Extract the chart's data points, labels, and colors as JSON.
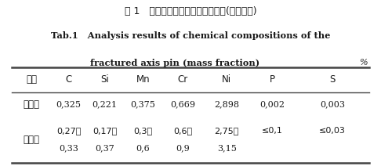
{
  "title_cn": "表 1   断裂轴销的化学成分分析结果(质量分数)",
  "title_en_line1": "Tab.1   Analysis results of chemical compositions of the",
  "title_en_line2": "fractured axis pin (mass fraction)",
  "percent_sign": "%",
  "col_headers": [
    "项目",
    "C",
    "Si",
    "Mn",
    "Cr",
    "Ni",
    "P",
    "S"
  ],
  "row1_label": "实测值",
  "row1_values": [
    "0,325",
    "0,221",
    "0,375",
    "0,669",
    "2,898",
    "0,002",
    "0,003"
  ],
  "row2_label": "标准值",
  "row2_values_top": [
    "0,27～",
    "0,17～",
    "0,3～",
    "0,6～",
    "2,75～",
    "≤0,1",
    "≤0,03"
  ],
  "row2_values_bot": [
    "0,33",
    "0,37",
    "0,6",
    "0,9",
    "3,15",
    "",
    ""
  ],
  "bg_color": "#ffffff",
  "text_color": "#1a1a1a",
  "line_color": "#444444"
}
